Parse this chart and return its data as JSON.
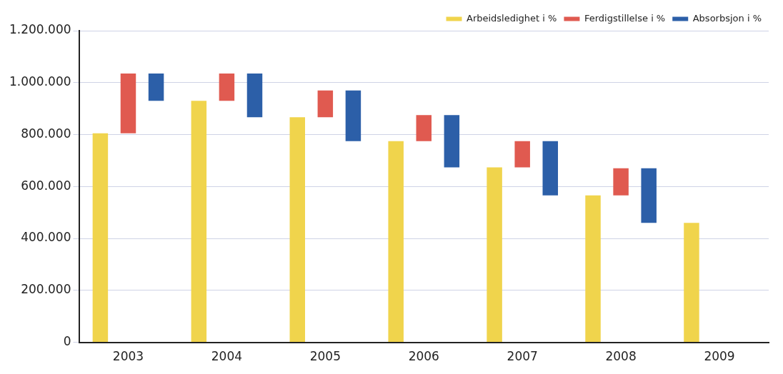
{
  "chart_data": {
    "type": "bar",
    "categories": [
      "2003",
      "2004",
      "2005",
      "2006",
      "2007",
      "2008",
      "2009"
    ],
    "series": [
      {
        "name": "Arbeidsledighet i %",
        "color": "#f0d44c",
        "values": [
          805000,
          930000,
          867000,
          775000,
          674000,
          566000,
          460000
        ]
      },
      {
        "name": "Ferdigstillelse i %",
        "color": "#e05a50",
        "base": [
          805000,
          930000,
          867000,
          775000,
          674000,
          566000,
          null
        ],
        "values": [
          230000,
          105000,
          103000,
          100000,
          101000,
          104000,
          null
        ]
      },
      {
        "name": "Absorbsjon i %",
        "color": "#2c5fa8",
        "base": [
          930000,
          867000,
          775000,
          674000,
          566000,
          460000,
          null
        ],
        "values": [
          105000,
          168000,
          195000,
          201000,
          209000,
          210000,
          null
        ]
      }
    ],
    "ylim": [
      0,
      1200000
    ],
    "yticks": [
      {
        "value": 0,
        "label": "0"
      },
      {
        "value": 200000,
        "label": "200.000"
      },
      {
        "value": 400000,
        "label": "400.000"
      },
      {
        "value": 600000,
        "label": "600.000"
      },
      {
        "value": 800000,
        "label": "800.000"
      },
      {
        "value": 1000000,
        "label": "1.000.000"
      },
      {
        "value": 1200000,
        "label": "1.200.000"
      }
    ],
    "grid": "y",
    "legend": "top right"
  }
}
